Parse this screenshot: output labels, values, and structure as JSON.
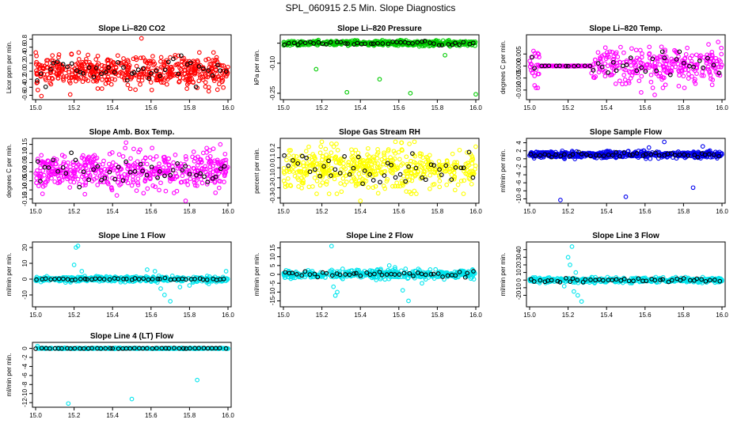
{
  "figure_title": "SPL_060915  2.5 Min. Slope Diagnostics",
  "chart_data": [
    {
      "type": "scatter",
      "title": "Slope Li–820 CO2",
      "ylabel": "Licor ppm per min.",
      "xlim": [
        15.0,
        16.0
      ],
      "ylim": [
        -0.65,
        0.85
      ],
      "xticks": [
        15.0,
        15.2,
        15.4,
        15.6,
        15.8,
        16.0
      ],
      "yticks": [
        -0.6,
        -0.4,
        -0.2,
        0.0,
        0.2,
        0.4,
        0.6,
        0.8
      ],
      "xtick_labels": [
        "15.0",
        "15.2",
        "15.4",
        "15.6",
        "15.8",
        "16.0"
      ],
      "ytick_labels": [
        "-0.6",
        "-0.4",
        "-0.2",
        "0.0",
        "0.2",
        "0.4",
        "0.6",
        "0.8"
      ],
      "series": [
        {
          "name": "all",
          "color": "#ff0000",
          "n": 520,
          "center": 0.0,
          "spread": 0.18,
          "outliers": [
            [
              15.55,
              0.82
            ],
            [
              15.03,
              -0.62
            ],
            [
              15.18,
              -0.58
            ],
            [
              15.9,
              -0.5
            ]
          ]
        },
        {
          "name": "selected",
          "color": "#000000",
          "n": 45,
          "center": 0.0,
          "spread": 0.15,
          "outliers": []
        }
      ]
    },
    {
      "type": "scatter",
      "title": "Slope Li–820 Pressure",
      "ylabel": "kPa per min.",
      "xlim": [
        15.0,
        16.0
      ],
      "ylim": [
        -0.27,
        0.03
      ],
      "xticks": [
        15.0,
        15.2,
        15.4,
        15.6,
        15.8,
        16.0
      ],
      "yticks": [
        -0.25,
        -0.1,
        0.0
      ],
      "xtick_labels": [
        "15.0",
        "15.2",
        "15.4",
        "15.6",
        "15.8",
        "16.0"
      ],
      "ytick_labels": [
        "-0.25",
        "-0.10",
        ""
      ],
      "series": [
        {
          "name": "all",
          "color": "#00cc00",
          "n": 520,
          "center": 0.0,
          "spread": 0.006,
          "outliers": [
            [
              15.17,
              -0.13
            ],
            [
              15.33,
              -0.245
            ],
            [
              15.5,
              -0.18
            ],
            [
              15.66,
              -0.25
            ],
            [
              16.0,
              -0.255
            ],
            [
              15.84,
              -0.06
            ]
          ]
        },
        {
          "name": "selected",
          "color": "#000000",
          "n": 45,
          "center": 0.0,
          "spread": 0.005,
          "outliers": []
        }
      ]
    },
    {
      "type": "scatter",
      "title": "Slope Li–820 Temp.",
      "ylabel": "degrees C per min.",
      "xlim": [
        15.0,
        16.0
      ],
      "ylim": [
        -0.013,
        0.012
      ],
      "xticks": [
        15.0,
        15.2,
        15.4,
        15.6,
        15.8,
        16.0
      ],
      "yticks": [
        -0.01,
        -0.005,
        0.0,
        0.005
      ],
      "xtick_labels": [
        "15.0",
        "15.2",
        "15.4",
        "15.6",
        "15.8",
        "16.0"
      ],
      "ytick_labels": [
        "-0.010",
        "-0.005",
        "0.000",
        "0.005"
      ],
      "flat_segment": [
        15.05,
        15.32
      ],
      "series": [
        {
          "name": "all",
          "color": "#ff00ff",
          "n": 420,
          "center": 0.0,
          "spread": 0.0035,
          "outliers": [
            [
              15.65,
              -0.012
            ],
            [
              15.58,
              -0.011
            ],
            [
              15.98,
              0.01
            ],
            [
              15.93,
              0.009
            ]
          ]
        },
        {
          "name": "selected",
          "color": "#000000",
          "n": 40,
          "center": 0.0,
          "spread": 0.003,
          "outliers": []
        }
      ]
    },
    {
      "type": "scatter",
      "title": "Slope Amb. Box Temp.",
      "ylabel": "degrees C per min.",
      "xlim": [
        15.0,
        16.0
      ],
      "ylim": [
        -0.16,
        0.17
      ],
      "xticks": [
        15.0,
        15.2,
        15.4,
        15.6,
        15.8,
        16.0
      ],
      "yticks": [
        -0.15,
        -0.1,
        -0.05,
        0.0,
        0.05,
        0.1,
        0.15
      ],
      "xtick_labels": [
        "15.0",
        "15.2",
        "15.4",
        "15.6",
        "15.8",
        "16.0"
      ],
      "ytick_labels": [
        "-0.15",
        "-0.10",
        "-0.05",
        "0.00",
        "0.05",
        "0.10",
        "0.15"
      ],
      "series": [
        {
          "name": "all",
          "color": "#ff00ff",
          "n": 500,
          "center": 0.0,
          "spread": 0.05,
          "outliers": [
            [
              15.78,
              -0.16
            ],
            [
              15.47,
              0.16
            ],
            [
              15.96,
              0.15
            ]
          ]
        },
        {
          "name": "selected",
          "color": "#000000",
          "n": 45,
          "center": 0.0,
          "spread": 0.04,
          "outliers": []
        }
      ]
    },
    {
      "type": "scatter",
      "title": "Slope Gas Stream RH",
      "ylabel": "percent per min.",
      "xlim": [
        15.0,
        16.0
      ],
      "ylim": [
        -0.33,
        0.27
      ],
      "xticks": [
        15.0,
        15.2,
        15.4,
        15.6,
        15.8,
        16.0
      ],
      "yticks": [
        -0.3,
        -0.2,
        -0.1,
        0.0,
        0.1,
        0.2
      ],
      "xtick_labels": [
        "15.0",
        "15.2",
        "15.4",
        "15.6",
        "15.8",
        "16.0"
      ],
      "ytick_labels": [
        "-0.3",
        "-0.2",
        "-0.1",
        "0.0",
        "0.1",
        "0.2"
      ],
      "series": [
        {
          "name": "all",
          "color": "#ffff00",
          "n": 520,
          "center": 0.0,
          "spread": 0.1,
          "outliers": [
            [
              15.4,
              -0.33
            ],
            [
              15.25,
              0.24
            ]
          ]
        },
        {
          "name": "selected",
          "color": "#000000",
          "n": 45,
          "center": 0.0,
          "spread": 0.09,
          "outliers": []
        }
      ]
    },
    {
      "type": "scatter",
      "title": "Slope Sample Flow",
      "ylabel": "ml/min per min.",
      "xlim": [
        15.0,
        16.0
      ],
      "ylim": [
        -10.5,
        4.5
      ],
      "xticks": [
        15.0,
        15.2,
        15.4,
        15.6,
        15.8,
        16.0
      ],
      "yticks": [
        -10,
        -8,
        -6,
        -4,
        -2,
        0,
        2,
        4
      ],
      "xtick_labels": [
        "15.0",
        "15.2",
        "15.4",
        "15.6",
        "15.8",
        "16.0"
      ],
      "ytick_labels": [
        "-10",
        "-8",
        "-6",
        "-4",
        "-2",
        "0",
        "2",
        "4"
      ],
      "series": [
        {
          "name": "all",
          "color": "#0000ee",
          "n": 520,
          "center": 1.0,
          "spread": 0.4,
          "outliers": [
            [
              15.16,
              -10.3
            ],
            [
              15.5,
              -9.5
            ],
            [
              15.7,
              4.2
            ],
            [
              15.85,
              -7.2
            ],
            [
              15.62,
              2.8
            ],
            [
              15.9,
              3.1
            ]
          ]
        },
        {
          "name": "selected",
          "color": "#000000",
          "n": 45,
          "center": 1.0,
          "spread": 0.3,
          "outliers": []
        }
      ]
    },
    {
      "type": "scatter",
      "title": "Slope Line 1 Flow",
      "ylabel": "ml/min per min.",
      "xlim": [
        15.0,
        16.0
      ],
      "ylim": [
        -16,
        22
      ],
      "xticks": [
        15.0,
        15.2,
        15.4,
        15.6,
        15.8,
        16.0
      ],
      "yticks": [
        -10,
        0,
        10,
        20
      ],
      "xtick_labels": [
        "15.0",
        "15.2",
        "15.4",
        "15.6",
        "15.8",
        "16.0"
      ],
      "ytick_labels": [
        "-10",
        "0",
        "10",
        "20"
      ],
      "series": [
        {
          "name": "all",
          "color": "#00e5ee",
          "n": 480,
          "center": 0.0,
          "spread": 0.8,
          "outliers": [
            [
              15.21,
              20
            ],
            [
              15.22,
              21
            ],
            [
              15.2,
              9
            ],
            [
              15.24,
              5
            ],
            [
              15.67,
              -10
            ],
            [
              15.7,
              -14
            ],
            [
              15.62,
              5
            ],
            [
              15.65,
              -6
            ],
            [
              15.75,
              -5
            ],
            [
              15.58,
              6
            ],
            [
              15.8,
              -4
            ],
            [
              15.9,
              -3
            ],
            [
              15.99,
              5
            ]
          ]
        },
        {
          "name": "selected",
          "color": "#000000",
          "n": 45,
          "center": 0.0,
          "spread": 0.3,
          "outliers": []
        }
      ]
    },
    {
      "type": "scatter",
      "title": "Slope Line 2 Flow",
      "ylabel": "ml/min per min.",
      "xlim": [
        15.0,
        16.0
      ],
      "ylim": [
        -17,
        17
      ],
      "xticks": [
        15.0,
        15.2,
        15.4,
        15.6,
        15.8,
        16.0
      ],
      "yticks": [
        -15,
        -10,
        -5,
        0,
        5,
        10,
        15
      ],
      "xtick_labels": [
        "15.0",
        "15.2",
        "15.4",
        "15.6",
        "15.8",
        "16.0"
      ],
      "ytick_labels": [
        "-15",
        "-10",
        "-5",
        "0",
        "5",
        "10",
        "15"
      ],
      "series": [
        {
          "name": "all",
          "color": "#00e5ee",
          "n": 480,
          "center": 0.0,
          "spread": 1.2,
          "outliers": [
            [
              15.25,
              16
            ],
            [
              15.26,
              -7
            ],
            [
              15.28,
              -10
            ],
            [
              15.27,
              -12
            ],
            [
              15.55,
              5
            ],
            [
              15.58,
              4
            ],
            [
              15.65,
              -15
            ],
            [
              15.72,
              -5
            ],
            [
              15.62,
              -9
            ]
          ]
        },
        {
          "name": "selected",
          "color": "#000000",
          "n": 45,
          "center": 0.0,
          "spread": 0.8,
          "outliers": []
        }
      ]
    },
    {
      "type": "scatter",
      "title": "Slope Line 3 Flow",
      "ylabel": "ml/min per min.",
      "xlim": [
        15.0,
        16.0
      ],
      "ylim": [
        -32,
        47
      ],
      "xticks": [
        15.0,
        15.2,
        15.4,
        15.6,
        15.8,
        16.0
      ],
      "yticks": [
        -20,
        -10,
        0,
        10,
        20,
        30,
        40
      ],
      "xtick_labels": [
        "15.0",
        "15.2",
        "15.4",
        "15.6",
        "15.8",
        "16.0"
      ],
      "ytick_labels": [
        "-20",
        "-10",
        "0",
        "10",
        "20",
        "30",
        "40"
      ],
      "series": [
        {
          "name": "all",
          "color": "#00e5ee",
          "n": 480,
          "center": 0.0,
          "spread": 1.5,
          "outliers": [
            [
              15.22,
              44
            ],
            [
              15.2,
              30
            ],
            [
              15.21,
              20
            ],
            [
              15.23,
              -15
            ],
            [
              15.25,
              -20
            ],
            [
              15.27,
              -28
            ],
            [
              15.24,
              10
            ],
            [
              15.18,
              -8
            ]
          ]
        },
        {
          "name": "selected",
          "color": "#000000",
          "n": 45,
          "center": 0.0,
          "spread": 1.2,
          "outliers": []
        }
      ]
    },
    {
      "type": "scatter",
      "title": "Slope Line 4 (LT) Flow",
      "ylabel": "ml/min per min.",
      "xlim": [
        15.0,
        16.0
      ],
      "ylim": [
        -12.5,
        0.8
      ],
      "xticks": [
        15.0,
        15.2,
        15.4,
        15.6,
        15.8,
        16.0
      ],
      "yticks": [
        -12,
        -10,
        -8,
        -6,
        -4,
        -2,
        0
      ],
      "xtick_labels": [
        "15.0",
        "15.2",
        "15.4",
        "15.6",
        "15.8",
        "16.0"
      ],
      "ytick_labels": [
        "-12",
        "-10",
        "-8",
        "-6",
        "-4",
        "-2",
        "0"
      ],
      "series": [
        {
          "name": "all",
          "color": "#00e5ee",
          "n": 420,
          "center": 0.0,
          "spread": 0.05,
          "outliers": [
            [
              15.17,
              -12.2
            ],
            [
              15.5,
              -11.2
            ],
            [
              15.84,
              -7.0
            ],
            [
              15.01,
              0.5
            ]
          ]
        },
        {
          "name": "selected",
          "color": "#000000",
          "n": 45,
          "center": 0.0,
          "spread": 0.04,
          "outliers": []
        }
      ]
    }
  ]
}
